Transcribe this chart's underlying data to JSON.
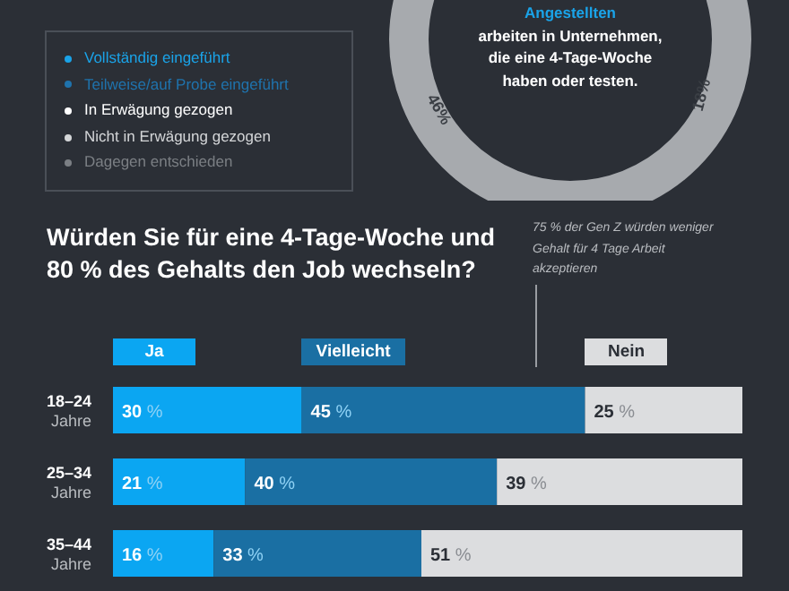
{
  "chart_data": [
    {
      "type": "other",
      "categories": [
        "Vollständig eingeführt",
        "Teilweise/auf Probe eingeführt",
        "In Erwägung gezogen",
        "Nicht in Erwägung gezogen",
        "Dagegen entschieden"
      ],
      "colors": [
        "#1aa3e8",
        "#1f73ad",
        "#ffffff",
        "#d4d6d8",
        "#7b7f84"
      ],
      "annotations": [
        "Angestellten",
        "arbeiten in Unternehmen, die eine 4-Tage-Woche haben oder testen.",
        "46%",
        "18%"
      ]
    },
    {
      "type": "bar",
      "orientation": "horizontal",
      "stacked": true,
      "title": "Würden Sie für eine 4-Tage-Woche und 80 % des Gehalts den Job wechseln?",
      "categories": [
        "18–24\nJahre",
        "25–34\nJahre",
        "35–44\nJahre"
      ],
      "xlim": [
        0,
        100
      ],
      "legend": "top",
      "series": [
        {
          "name": "Ja",
          "color": "#0ba6f2",
          "values": [
            30,
            21,
            16
          ],
          "value_labels": [
            "30 %",
            "21 %",
            "16 %"
          ]
        },
        {
          "name": "Vielleicht",
          "color": "#1a6fa3",
          "values": [
            45,
            40,
            33
          ],
          "value_labels": [
            "45 %",
            "40 %",
            "33 %"
          ]
        },
        {
          "name": "Nein",
          "color": "#dcdddf",
          "values": [
            25,
            39,
            51
          ],
          "value_labels": [
            "25 %",
            "39 %",
            "51 %"
          ]
        }
      ],
      "annotations": [
        "75 % der Gen Z würden weniger Gehalt für 4 Tage Arbeit akzeptieren"
      ]
    }
  ]
}
